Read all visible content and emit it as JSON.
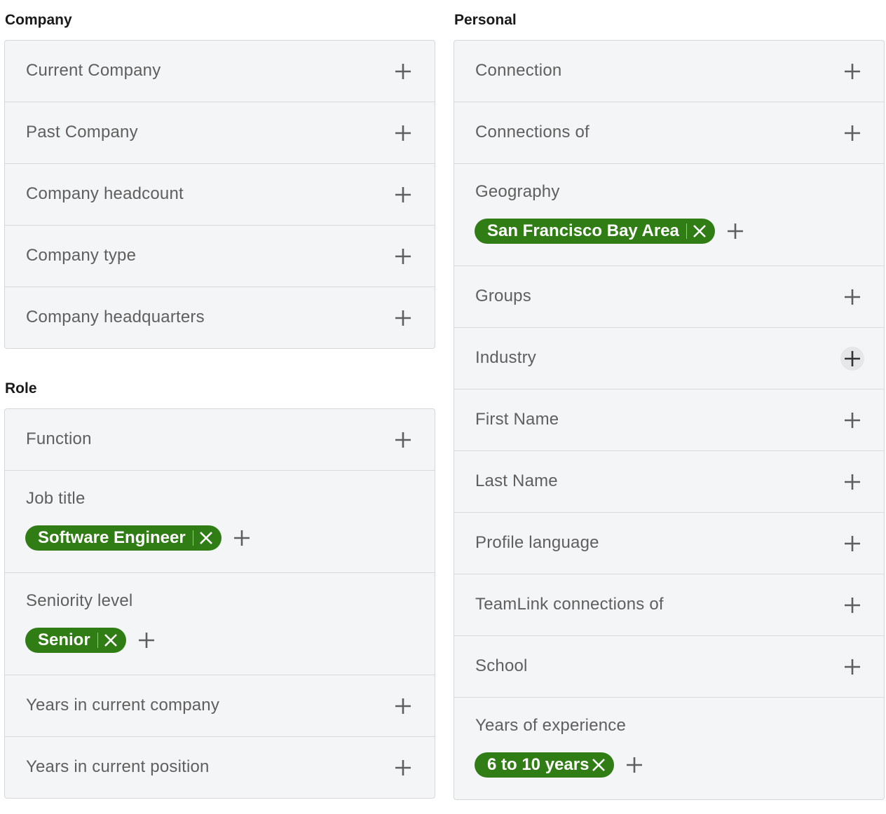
{
  "colors": {
    "chip": "#2f7d14",
    "panel": "#f4f5f7",
    "label": "#5f5f5f"
  },
  "sections": {
    "left": [
      {
        "title": "Company",
        "items": [
          {
            "label": "Current Company"
          },
          {
            "label": "Past Company"
          },
          {
            "label": "Company headcount"
          },
          {
            "label": "Company type"
          },
          {
            "label": "Company headquarters"
          }
        ]
      },
      {
        "title": "Role",
        "items": [
          {
            "label": "Function"
          },
          {
            "label": "Job title",
            "chips": [
              {
                "label": "Software Engineer",
                "separator": true
              }
            ]
          },
          {
            "label": "Seniority level",
            "chips": [
              {
                "label": "Senior",
                "separator": true
              }
            ]
          },
          {
            "label": "Years in current company"
          },
          {
            "label": "Years in current position"
          }
        ]
      }
    ],
    "right": [
      {
        "title": "Personal",
        "items": [
          {
            "label": "Connection"
          },
          {
            "label": "Connections of"
          },
          {
            "label": "Geography",
            "chips": [
              {
                "label": "San Francisco Bay Area",
                "separator": true
              }
            ]
          },
          {
            "label": "Groups"
          },
          {
            "label": "Industry",
            "hovered": true
          },
          {
            "label": "First Name"
          },
          {
            "label": "Last Name"
          },
          {
            "label": "Profile language"
          },
          {
            "label": "TeamLink connections of"
          },
          {
            "label": "School"
          },
          {
            "label": "Years of experience",
            "chips": [
              {
                "label": "6 to 10 years",
                "separator": false
              }
            ]
          }
        ]
      }
    ]
  }
}
